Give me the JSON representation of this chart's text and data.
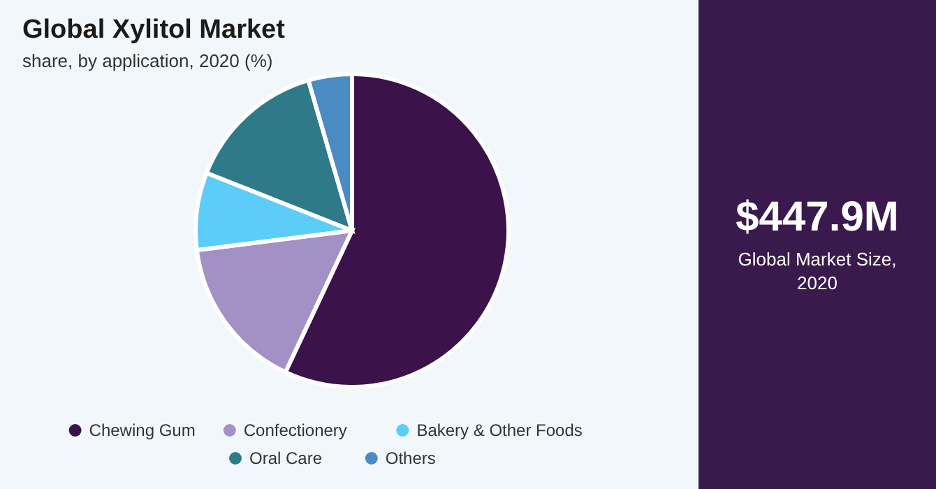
{
  "chart_data": {
    "type": "pie",
    "title": "Global Xylitol Market",
    "subtitle": "share, by application, 2020 (%)",
    "categories": [
      "Chewing Gum",
      "Confectionery",
      "Bakery & Other Foods",
      "Oral Care",
      "Others"
    ],
    "values": [
      57,
      16,
      8,
      14.5,
      4.5
    ],
    "colors": [
      "#3b1249",
      "#a391c6",
      "#5ccdf6",
      "#2f7a89",
      "#4b8bc3"
    ],
    "legend": "bottom",
    "annotations": [
      "$447.9M",
      "Global Market Size, 2020"
    ]
  }
}
